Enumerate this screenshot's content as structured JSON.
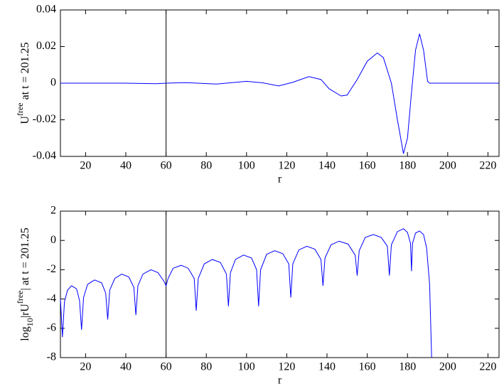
{
  "chart_data": [
    {
      "type": "line",
      "xlabel": "r",
      "ylabel": {
        "base": "U",
        "sup": "free",
        "rest": " at t = 201.25"
      },
      "xlim": [
        7.5,
        225.5
      ],
      "xticks": [
        20,
        40,
        60,
        80,
        100,
        120,
        140,
        160,
        180,
        200,
        220
      ],
      "ylim": [
        -0.04,
        0.04
      ],
      "yticks": [
        -0.04,
        -0.02,
        0,
        0.02,
        0.04
      ],
      "vline": 60,
      "color": "#0000ff",
      "x": [
        7.5,
        20,
        40,
        55,
        60,
        70,
        85,
        100,
        108,
        116,
        123,
        131,
        137,
        141,
        147,
        150,
        155,
        160,
        165,
        168,
        172,
        175,
        178,
        180,
        182,
        184,
        186,
        188,
        190,
        191,
        200,
        225.5
      ],
      "values": [
        0,
        0,
        0,
        -0.0003,
        0,
        0.0003,
        -0.0005,
        0.001,
        0.0002,
        -0.0015,
        0.0005,
        0.0036,
        0.002,
        -0.003,
        -0.007,
        -0.0065,
        0.002,
        0.012,
        0.0165,
        0.014,
        0,
        -0.02,
        -0.0385,
        -0.03,
        -0.005,
        0.018,
        0.027,
        0.018,
        0.001,
        0,
        0,
        0
      ]
    },
    {
      "type": "line",
      "xlabel": "r",
      "ylabel": {
        "pre": "log",
        "sub": "10",
        "mid": "|rU",
        "sup": "free",
        "rest": "| at t = 201.25"
      },
      "xlim": [
        7.5,
        225.5
      ],
      "xticks": [
        20,
        40,
        60,
        80,
        100,
        120,
        140,
        160,
        180,
        200,
        220
      ],
      "ylim": [
        -8,
        2
      ],
      "yticks": [
        -8,
        -6,
        -4,
        -2,
        0,
        2
      ],
      "vline": 60,
      "color": "#0000ff",
      "x": [
        7.5,
        8.5,
        9.5,
        11,
        13,
        15.5,
        17,
        18,
        19,
        21,
        24.5,
        28,
        30,
        31,
        32,
        34.5,
        38,
        41.5,
        44,
        45,
        46,
        48.5,
        52.5,
        56,
        59,
        60,
        61,
        63.5,
        67.5,
        71,
        74,
        75,
        76,
        79,
        83,
        87,
        90,
        91,
        92,
        94.5,
        98.5,
        102.5,
        105,
        106,
        107,
        110,
        114,
        118,
        121,
        122,
        123,
        126,
        130,
        134,
        137,
        138,
        139,
        142,
        146,
        150.5,
        154,
        155,
        156,
        159,
        163,
        167,
        170,
        171,
        172,
        175,
        178,
        180,
        181.5,
        182,
        182.5,
        184,
        186,
        188,
        189.5,
        191,
        192
      ],
      "values": [
        -4.0,
        -6.6,
        -4.2,
        -3.4,
        -3.1,
        -3.3,
        -4.1,
        -6.1,
        -3.9,
        -3.0,
        -2.7,
        -2.9,
        -3.6,
        -5.4,
        -3.4,
        -2.6,
        -2.3,
        -2.5,
        -3.2,
        -5.1,
        -3.1,
        -2.3,
        -2.0,
        -2.2,
        -2.8,
        -3.1,
        -2.6,
        -1.9,
        -1.7,
        -1.9,
        -2.6,
        -4.8,
        -2.6,
        -1.6,
        -1.3,
        -1.5,
        -2.3,
        -4.5,
        -2.2,
        -1.3,
        -1.0,
        -1.2,
        -2.0,
        -4.5,
        -2.0,
        -0.95,
        -0.7,
        -0.9,
        -1.6,
        -3.9,
        -1.6,
        -0.65,
        -0.4,
        -0.6,
        -1.3,
        -3.1,
        -1.2,
        -0.3,
        -0.05,
        -0.25,
        -1.0,
        -2.4,
        -0.7,
        0.2,
        0.4,
        0.2,
        -0.4,
        -2.4,
        -0.3,
        0.6,
        0.8,
        0.55,
        -0.2,
        -2.1,
        -0.2,
        0.5,
        0.65,
        0.4,
        -0.5,
        -3,
        -8
      ]
    }
  ]
}
